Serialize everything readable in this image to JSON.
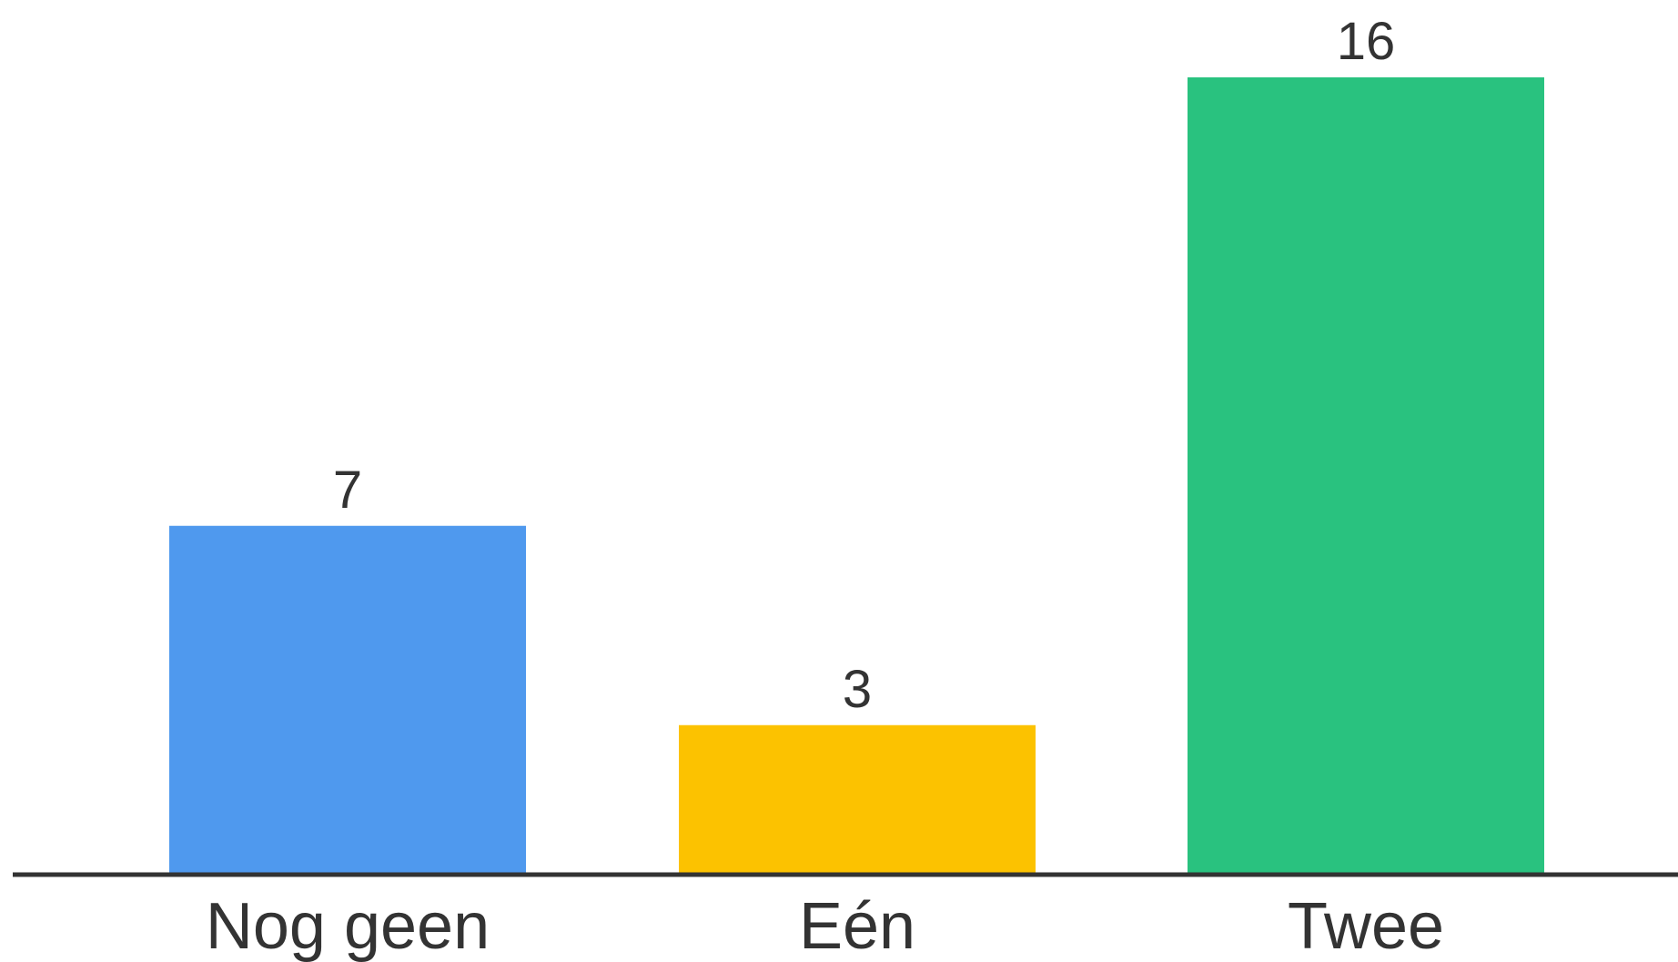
{
  "chart_data": {
    "type": "bar",
    "categories": [
      "Nog geen",
      "Eén",
      "Twee"
    ],
    "values": [
      7,
      3,
      16
    ],
    "data_labels": [
      "7",
      "3",
      "16"
    ],
    "colors": [
      "#4F99EE",
      "#FCC200",
      "#29C27F"
    ],
    "axis_color": "#333333",
    "ylim": [
      0,
      16
    ],
    "grid": false,
    "title": "",
    "xlabel": "",
    "ylabel": ""
  }
}
